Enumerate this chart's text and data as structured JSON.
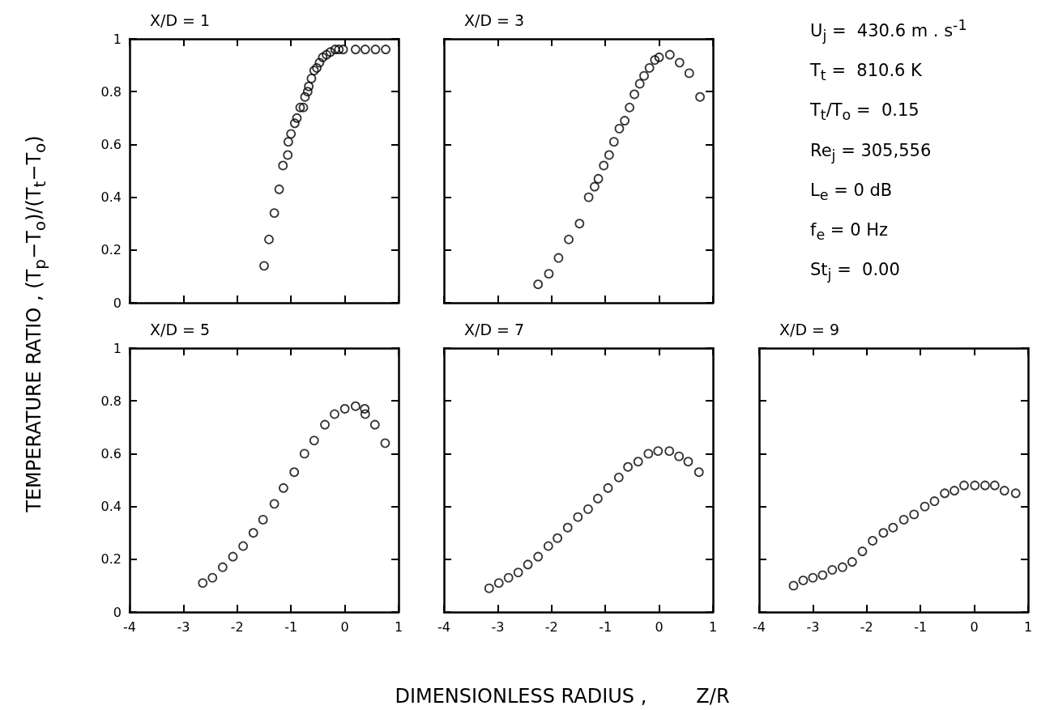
{
  "chart_data": [
    {
      "type": "scatter",
      "title": "X/D = 1",
      "ylabel": "TEMPERATURE RATIO ,   (T$_{p}$−T$_{o}$)/(T$_{t}$−T$_{o}$)",
      "color": "#000000",
      "marker": "circle",
      "tick_labels": "y",
      "xlim": [
        -4,
        1
      ],
      "ylim": [
        0,
        1
      ],
      "xticks": [
        -4,
        -3,
        -2,
        -1,
        0,
        1
      ],
      "yticks": [
        0,
        0.2,
        0.4,
        0.6,
        0.8,
        1
      ],
      "x": [
        -1.5,
        -1.41,
        -1.31,
        -1.22,
        -1.15,
        -1.06,
        -1.05,
        -1.0,
        -0.93,
        -0.89,
        -0.83,
        -0.77,
        -0.74,
        -0.69,
        -0.67,
        -0.62,
        -0.57,
        -0.52,
        -0.47,
        -0.41,
        -0.34,
        -0.27,
        -0.18,
        -0.11,
        -0.03,
        0.2,
        0.38,
        0.57,
        0.76
      ],
      "values": [
        0.14,
        0.24,
        0.34,
        0.43,
        0.52,
        0.56,
        0.61,
        0.64,
        0.68,
        0.7,
        0.74,
        0.74,
        0.78,
        0.8,
        0.82,
        0.85,
        0.88,
        0.89,
        0.91,
        0.93,
        0.94,
        0.95,
        0.96,
        0.96,
        0.96,
        0.96,
        0.96,
        0.96,
        0.96
      ]
    },
    {
      "type": "scatter",
      "title": "X/D = 3",
      "color": "#000000",
      "marker": "circle",
      "tick_labels": false,
      "xlim": [
        -4,
        1
      ],
      "ylim": [
        0,
        1
      ],
      "xticks": [
        -4,
        -3,
        -2,
        -1,
        0,
        1
      ],
      "yticks": [
        0,
        0.2,
        0.4,
        0.6,
        0.8,
        1
      ],
      "x": [
        -2.25,
        -2.05,
        -1.87,
        -1.68,
        -1.48,
        -1.31,
        -1.2,
        -1.13,
        -1.03,
        -0.93,
        -0.84,
        -0.74,
        -0.64,
        -0.55,
        -0.46,
        -0.36,
        -0.28,
        -0.18,
        -0.08,
        0.0,
        0.2,
        0.38,
        0.56,
        0.76
      ],
      "values": [
        0.07,
        0.11,
        0.17,
        0.24,
        0.3,
        0.4,
        0.44,
        0.47,
        0.52,
        0.56,
        0.61,
        0.66,
        0.69,
        0.74,
        0.79,
        0.83,
        0.86,
        0.89,
        0.92,
        0.93,
        0.94,
        0.91,
        0.87,
        0.78
      ]
    },
    {
      "type": "other",
      "annotations": [
        "U$_{j}$ =  430.6 m . s$^{-1}$",
        "T$_{t}$ =  810.6 K",
        "T$_{t}$/T$_{o}$ =  0.15",
        "Re$_{j}$ = 305,556",
        "L$_{e}$ = 0 dB",
        "f$_{e}$ = 0 Hz",
        "St$_{j}$ =  0.00"
      ]
    },
    {
      "type": "scatter",
      "title": "X/D = 5",
      "color": "#000000",
      "marker": "circle",
      "xlim": [
        -4,
        1
      ],
      "ylim": [
        0,
        1
      ],
      "xticks": [
        -4,
        -3,
        -2,
        -1,
        0,
        1
      ],
      "yticks": [
        0,
        0.2,
        0.4,
        0.6,
        0.8,
        1
      ],
      "x": [
        -2.64,
        -2.46,
        -2.27,
        -2.08,
        -1.89,
        -1.7,
        -1.52,
        -1.31,
        -1.14,
        -0.94,
        -0.75,
        -0.57,
        -0.37,
        -0.19,
        0.0,
        0.2,
        0.37,
        0.38,
        0.56,
        0.75
      ],
      "values": [
        0.11,
        0.13,
        0.17,
        0.21,
        0.25,
        0.3,
        0.35,
        0.41,
        0.47,
        0.53,
        0.6,
        0.65,
        0.71,
        0.75,
        0.77,
        0.78,
        0.77,
        0.75,
        0.71,
        0.64
      ]
    },
    {
      "type": "scatter",
      "title": "X/D = 7",
      "xlabel": "DIMENSIONLESS RADIUS ,        Z/R",
      "color": "#000000",
      "marker": "circle",
      "tick_labels": "x",
      "xlim": [
        -4,
        1
      ],
      "ylim": [
        0,
        1
      ],
      "xticks": [
        -4,
        -3,
        -2,
        -1,
        0,
        1
      ],
      "yticks": [
        0,
        0.2,
        0.4,
        0.6,
        0.8,
        1
      ],
      "x": [
        -3.16,
        -2.98,
        -2.8,
        -2.62,
        -2.44,
        -2.25,
        -2.06,
        -1.89,
        -1.7,
        -1.51,
        -1.32,
        -1.14,
        -0.95,
        -0.75,
        -0.58,
        -0.39,
        -0.2,
        -0.02,
        0.19,
        0.37,
        0.54,
        0.74
      ],
      "values": [
        0.09,
        0.11,
        0.13,
        0.15,
        0.18,
        0.21,
        0.25,
        0.28,
        0.32,
        0.36,
        0.39,
        0.43,
        0.47,
        0.51,
        0.55,
        0.57,
        0.6,
        0.61,
        0.61,
        0.59,
        0.57,
        0.53
      ]
    },
    {
      "type": "scatter",
      "title": "X/D = 9",
      "color": "#000000",
      "marker": "circle",
      "tick_labels": "x",
      "xlim": [
        -4,
        1
      ],
      "ylim": [
        0,
        1
      ],
      "xticks": [
        -4,
        -3,
        -2,
        -1,
        0,
        1
      ],
      "yticks": [
        0,
        0.2,
        0.4,
        0.6,
        0.8,
        1
      ],
      "x": [
        -3.36,
        -3.18,
        -3.0,
        -2.82,
        -2.64,
        -2.45,
        -2.27,
        -2.08,
        -1.89,
        -1.69,
        -1.51,
        -1.31,
        -1.12,
        -0.92,
        -0.74,
        -0.55,
        -0.37,
        -0.19,
        0.01,
        0.2,
        0.38,
        0.56,
        0.77
      ],
      "values": [
        0.1,
        0.12,
        0.13,
        0.14,
        0.16,
        0.17,
        0.19,
        0.23,
        0.27,
        0.3,
        0.32,
        0.35,
        0.37,
        0.4,
        0.42,
        0.45,
        0.46,
        0.48,
        0.48,
        0.48,
        0.48,
        0.46,
        0.45
      ]
    }
  ]
}
